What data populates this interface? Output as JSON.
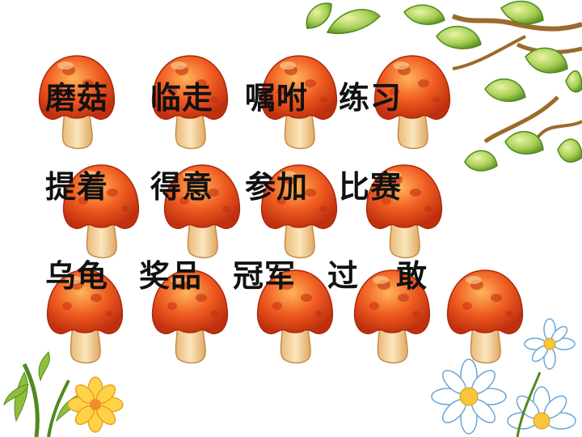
{
  "words": [
    [
      "磨菇",
      "临走",
      "嘱咐",
      "练习"
    ],
    [
      "提着",
      "得意",
      "参加",
      "比赛"
    ],
    [
      "乌龟",
      "奖品",
      "冠军",
      "过",
      "敢"
    ]
  ],
  "colors": {
    "cap": "#e8481a",
    "cap_light": "#f7a14a",
    "cap_dark": "#b72a10",
    "stem": "#f3d39a",
    "leaf": "#8fbf3a",
    "leaf_dark": "#4f8a1d",
    "branch": "#9c6a2a",
    "daisy_petal": "#ffffff",
    "daisy_center": "#f6c63b",
    "yellow_flower": "#ffd24a",
    "blue_outline": "#6aa6d6"
  },
  "icons": [
    "mushroom-icon",
    "leaf-icon",
    "branch-icon",
    "daisy-icon",
    "flower-icon"
  ]
}
